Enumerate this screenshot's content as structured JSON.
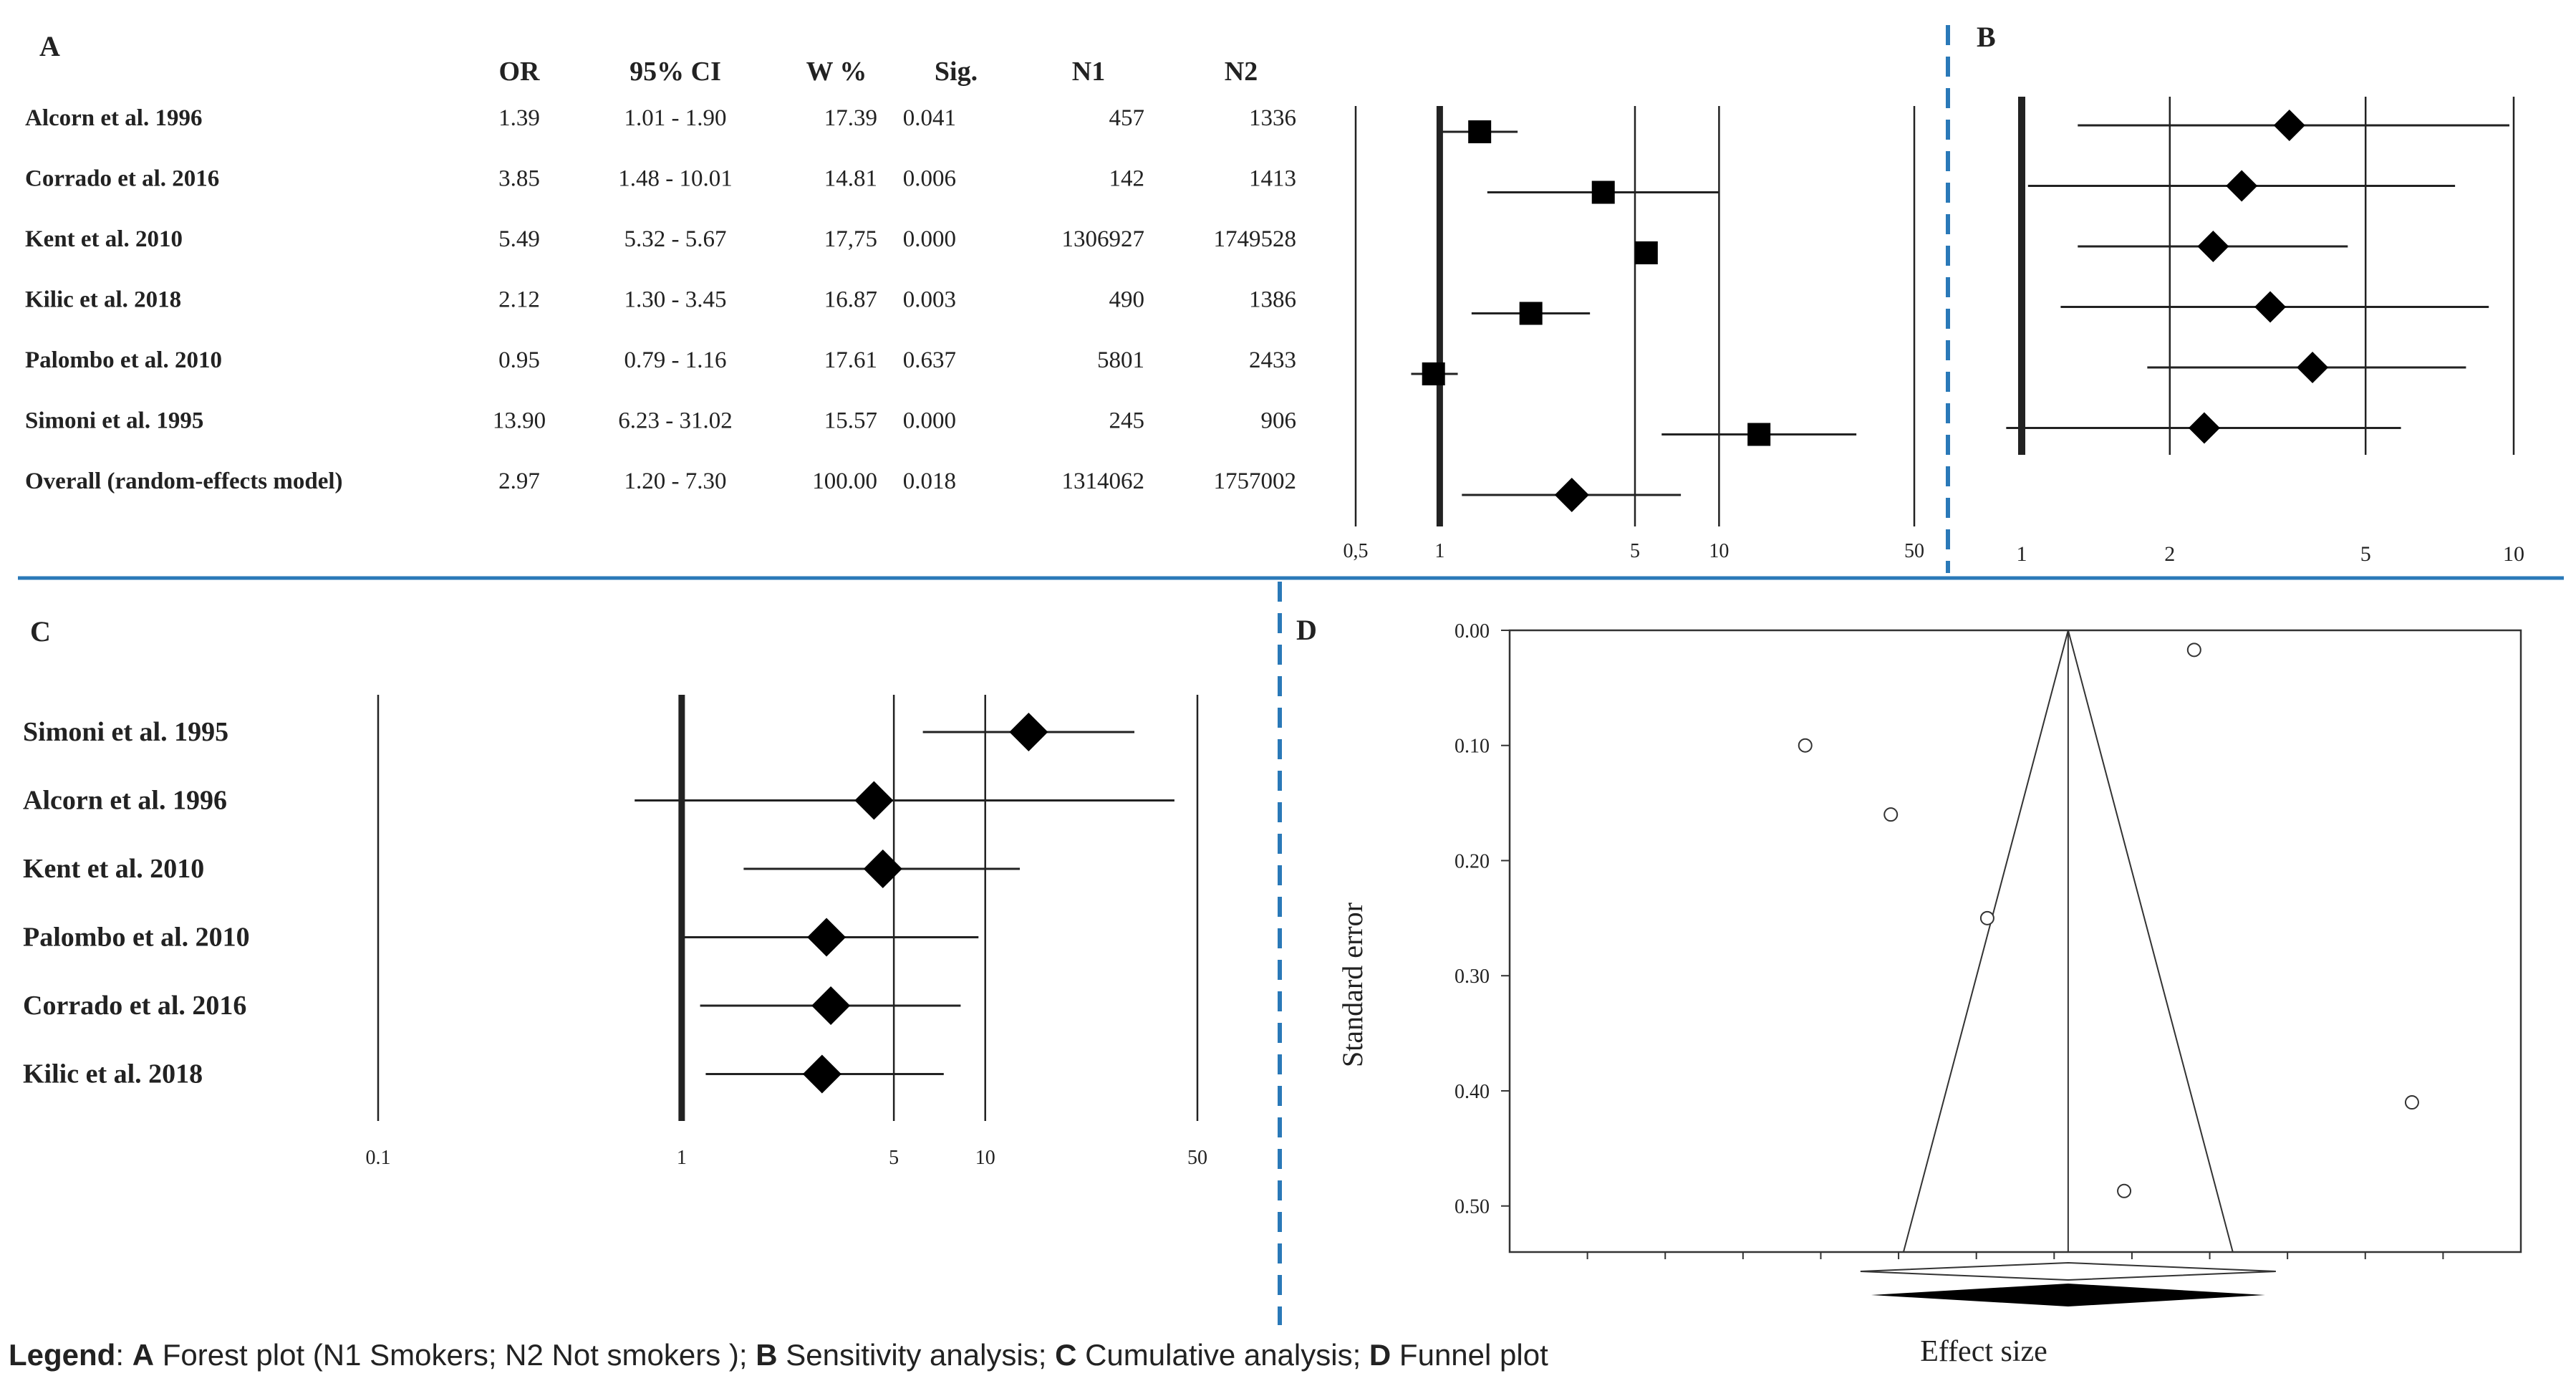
{
  "legend": {
    "prefix": "Legend",
    "a_key": "A",
    "a_text": " Forest plot (N1 Smokers; N2 Not smokers );",
    "b_key": "B",
    "b_text": " Sensitivity analysis;",
    "c_key": "C",
    "c_text": " Cumulative analysis;",
    "d_key": "D",
    "d_text": " Funnel plot"
  },
  "chart_data": [
    {
      "panel": "A",
      "type": "forest",
      "headers": [
        "OR",
        "95% CI",
        "W %",
        "Sig.",
        "N1",
        "N2"
      ],
      "rows": [
        {
          "study": "Alcorn et al. 1996",
          "or_text": "1.39",
          "ci_text": "1.01 - 1.90",
          "w": "17.39",
          "sig": "0.041",
          "n1": "457",
          "n2": "1336",
          "or": 1.39,
          "lo": 1.01,
          "hi": 1.9
        },
        {
          "study": "Corrado et al. 2016",
          "or_text": "3.85",
          "ci_text": "1.48 - 10.01",
          "w": "14.81",
          "sig": "0.006",
          "n1": "142",
          "n2": "1413",
          "or": 3.85,
          "lo": 1.48,
          "hi": 10.01
        },
        {
          "study": "Kent et al. 2010",
          "or_text": "5.49",
          "ci_text": "5.32 - 5.67",
          "w": "17,75",
          "sig": "0.000",
          "n1": "1306927",
          "n2": "1749528",
          "or": 5.49,
          "lo": 5.32,
          "hi": 5.67
        },
        {
          "study": "Kilic et al. 2018",
          "or_text": "2.12",
          "ci_text": "1.30 - 3.45",
          "w": "16.87",
          "sig": "0.003",
          "n1": "490",
          "n2": "1386",
          "or": 2.12,
          "lo": 1.3,
          "hi": 3.45
        },
        {
          "study": "Palombo et al. 2010",
          "or_text": "0.95",
          "ci_text": "0.79 - 1.16",
          "w": "17.61",
          "sig": "0.637",
          "n1": "5801",
          "n2": "2433",
          "or": 0.95,
          "lo": 0.79,
          "hi": 1.16
        },
        {
          "study": "Simoni et al. 1995",
          "or_text": "13.90",
          "ci_text": "6.23 - 31.02",
          "w": "15.57",
          "sig": "0.000",
          "n1": "245",
          "n2": "906",
          "or": 13.9,
          "lo": 6.23,
          "hi": 31.02
        }
      ],
      "overall": {
        "study": "Overall (random-effects model)",
        "or_text": "2.97",
        "ci_text": "1.20 - 7.30",
        "w": "100.00",
        "sig": "0.018",
        "n1": "1314062",
        "n2": "1757002",
        "or": 2.97,
        "lo": 1.2,
        "hi": 7.3
      },
      "xscale": "log",
      "xticks": [
        0.5,
        1,
        5,
        10,
        50
      ],
      "xtick_labels": [
        "0,5",
        "1",
        "5",
        "10",
        "50"
      ]
    },
    {
      "panel": "B",
      "type": "sensitivity",
      "xscale": "log",
      "xticks": [
        1,
        2,
        5,
        10
      ],
      "xtick_labels": [
        "1",
        "2",
        "5",
        "10"
      ],
      "rows": [
        {
          "est": 3.5,
          "lo": 1.3,
          "hi": 9.8
        },
        {
          "est": 2.8,
          "lo": 1.03,
          "hi": 7.6
        },
        {
          "est": 2.45,
          "lo": 1.3,
          "hi": 4.6
        },
        {
          "est": 3.2,
          "lo": 1.2,
          "hi": 8.9
        },
        {
          "est": 3.9,
          "lo": 1.8,
          "hi": 8.0
        },
        {
          "est": 2.35,
          "lo": 0.93,
          "hi": 5.9
        }
      ]
    },
    {
      "panel": "C",
      "type": "cumulative",
      "xscale": "log",
      "xticks": [
        0.1,
        1,
        5,
        10,
        50
      ],
      "xtick_labels": [
        "0.1",
        "1",
        "5",
        "10",
        "50"
      ],
      "rows": [
        {
          "study": "Simoni et al. 1995",
          "est": 13.9,
          "lo": 6.23,
          "hi": 31.0
        },
        {
          "study": "Alcorn et al. 1996",
          "est": 4.3,
          "lo": 0.7,
          "hi": 42.0
        },
        {
          "study": "Kent et al. 2010",
          "est": 4.6,
          "lo": 1.6,
          "hi": 13.0
        },
        {
          "study": "Palombo et al. 2010",
          "est": 3.0,
          "lo": 1.0,
          "hi": 9.5
        },
        {
          "study": "Corrado et al. 2016",
          "est": 3.1,
          "lo": 1.15,
          "hi": 8.3
        },
        {
          "study": "Kilic et al. 2018",
          "est": 2.9,
          "lo": 1.2,
          "hi": 7.3
        }
      ]
    },
    {
      "panel": "D",
      "type": "funnel",
      "ylabel": "Standard error",
      "xlabel": "Effect size",
      "ylim": [
        0,
        0.54
      ],
      "yticks": [
        "0.00",
        "0.10",
        "0.20",
        "0.30",
        "0.40",
        "0.50"
      ],
      "ytick_values": [
        0,
        0.1,
        0.2,
        0.3,
        0.4,
        0.5
      ],
      "xlim": [
        -2.5,
        4.0
      ],
      "x_minor_ticks": [
        -2.0,
        -1.5,
        -1.0,
        -0.5,
        0,
        0.5,
        1.0,
        1.5,
        2.0,
        2.5,
        3.0,
        3.5
      ],
      "center": 1.09,
      "points": [
        {
          "x": 1.9,
          "y": 0.017
        },
        {
          "x": -0.6,
          "y": 0.1
        },
        {
          "x": -0.05,
          "y": 0.16
        },
        {
          "x": 0.57,
          "y": 0.25
        },
        {
          "x": 3.3,
          "y": 0.41
        },
        {
          "x": 1.45,
          "y": 0.487
        }
      ]
    }
  ]
}
